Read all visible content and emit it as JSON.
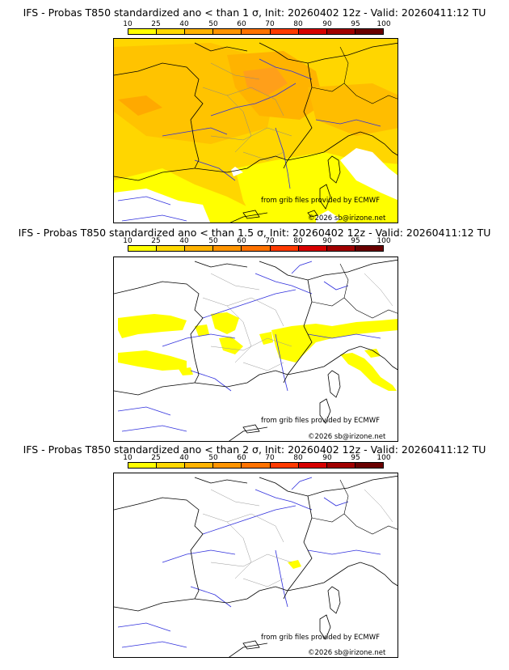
{
  "colorbar": {
    "ticks": [
      "10",
      "25",
      "40",
      "50",
      "60",
      "70",
      "80",
      "90",
      "95",
      "100"
    ],
    "colors": [
      "#ffff00",
      "#ffd800",
      "#ffb300",
      "#ff9400",
      "#ff7200",
      "#ff3a00",
      "#d70000",
      "#a10000",
      "#6a0000"
    ]
  },
  "panels": [
    {
      "title": "IFS - Probas T850  standardized ano < than 1 σ, Init: 20260402 12z - Valid: 20260411:12 TU",
      "source_text": "from grib files provided by ECMWF",
      "copyright": "©2026 sb@irizone.net"
    },
    {
      "title": "IFS - Probas T850  standardized ano < than 1.5 σ, Init: 20260402 12z - Valid: 20260411:12 TU",
      "source_text": "from grib files provided by ECMWF",
      "copyright": "©2026 sb@irizone.net"
    },
    {
      "title": "IFS - Probas T850  standardized ano < than 2 σ, Init: 20260402 12z - Valid: 20260411:12 TU",
      "source_text": "from grib files provided by ECMWF",
      "copyright": "©2026 sb@irizone.net"
    }
  ]
}
